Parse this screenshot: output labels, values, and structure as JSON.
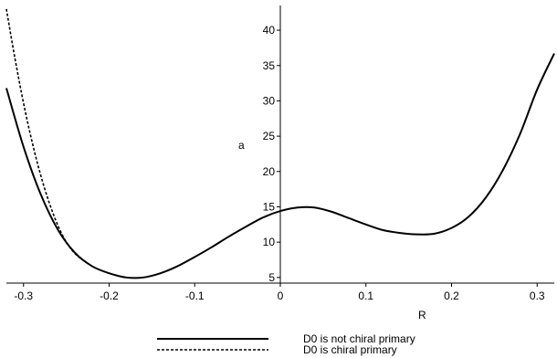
{
  "chart_data": {
    "type": "line",
    "title": "",
    "xlabel": "R",
    "ylabel": "a",
    "xlim": [
      -0.32,
      0.32
    ],
    "ylim": [
      4.2,
      43.5
    ],
    "grid": false,
    "legend_position": "bottom-center",
    "x_ticks": [
      -0.3,
      -0.2,
      -0.1,
      0,
      0.1,
      0.2,
      0.3
    ],
    "y_ticks": [
      5,
      10,
      15,
      20,
      25,
      30,
      35,
      40
    ],
    "x_tick_labels": [
      "-0.3",
      "-0.2",
      "-0.1",
      "0",
      "0.1",
      "0.2",
      "0.3"
    ],
    "y_tick_labels": [
      "5",
      "10",
      "15",
      "20",
      "25",
      "30",
      "35",
      "40"
    ],
    "series": [
      {
        "name": "D0 is not chiral primary",
        "style": "solid",
        "x": [
          -0.32,
          -0.3,
          -0.28,
          -0.26,
          -0.24,
          -0.22,
          -0.2,
          -0.18,
          -0.16,
          -0.14,
          -0.12,
          -0.1,
          -0.08,
          -0.06,
          -0.04,
          -0.02,
          0.0,
          0.02,
          0.04,
          0.06,
          0.08,
          0.1,
          0.12,
          0.14,
          0.16,
          0.18,
          0.2,
          0.22,
          0.24,
          0.26,
          0.28,
          0.3,
          0.32
        ],
        "y": [
          31.8,
          23.5,
          16.8,
          11.8,
          8.5,
          6.6,
          5.6,
          5.0,
          5.0,
          5.6,
          6.6,
          7.9,
          9.3,
          10.8,
          12.2,
          13.5,
          14.4,
          14.9,
          14.9,
          14.3,
          13.4,
          12.5,
          11.7,
          11.3,
          11.1,
          11.2,
          12.0,
          13.6,
          16.3,
          20.2,
          25.3,
          31.6,
          36.7
        ]
      },
      {
        "name": "D0 is chiral primary",
        "style": "dashed",
        "x": [
          -0.32,
          -0.31,
          -0.3,
          -0.29,
          -0.28,
          -0.27,
          -0.26,
          -0.25,
          -0.24,
          -0.23,
          -0.22
        ],
        "y": [
          43.0,
          36.0,
          29.7,
          24.2,
          19.5,
          15.6,
          12.4,
          10.0,
          8.4,
          7.4,
          6.6
        ]
      }
    ]
  }
}
